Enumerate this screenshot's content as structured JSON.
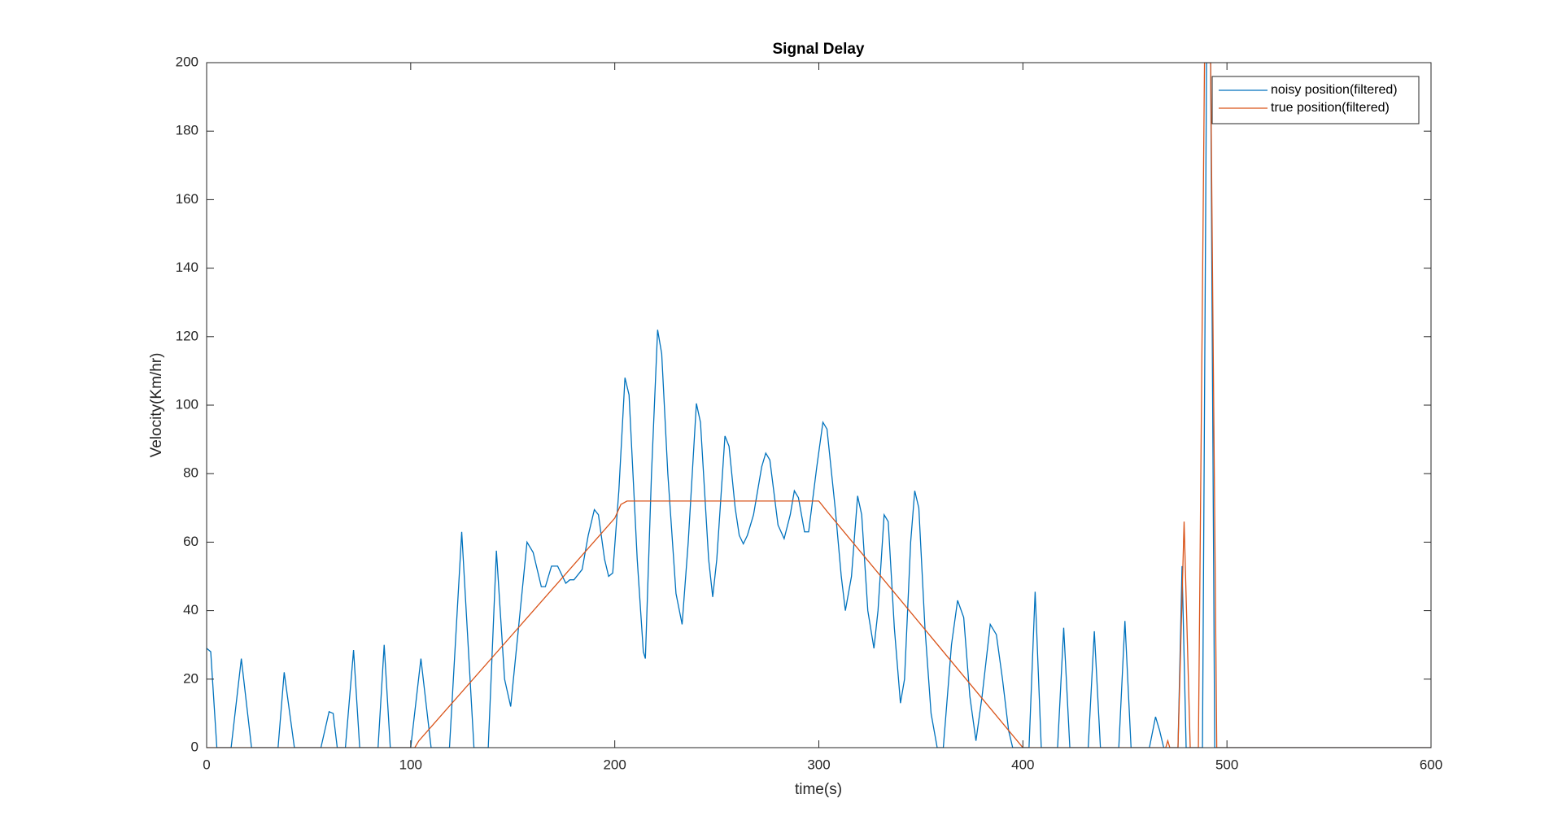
{
  "chart_data": {
    "type": "line",
    "title": "Signal Delay",
    "x_label": "time(s)",
    "y_label": "Velocity(Km/hr)",
    "xlim": [
      0,
      600
    ],
    "xticks": [
      0,
      100,
      200,
      300,
      400,
      500,
      600
    ],
    "ylim": [
      0,
      200
    ],
    "yticks": [
      0,
      20,
      40,
      60,
      80,
      100,
      120,
      140,
      160,
      180,
      200
    ],
    "grid": false,
    "legend": "upper right",
    "series": [
      {
        "name": "noisy position(filtered)",
        "color": "#0072bd",
        "x": [
          0,
          2,
          5,
          12,
          17,
          22,
          35,
          38,
          43,
          56,
          60,
          62,
          64,
          68,
          72,
          75,
          84,
          87,
          90,
          100,
          105,
          110,
          119,
          125,
          131,
          138,
          142,
          146,
          149,
          152,
          157,
          160,
          164,
          166,
          169,
          172,
          176,
          178,
          180,
          184,
          187,
          190,
          192,
          195,
          197,
          199,
          202,
          205,
          207,
          211,
          214,
          215,
          218,
          221,
          223,
          226,
          230,
          233,
          236,
          240,
          242,
          246,
          248,
          250,
          254,
          256,
          259,
          261,
          263,
          265,
          268,
          272,
          274,
          276,
          280,
          283,
          286,
          288,
          290,
          293,
          295,
          299,
          302,
          304,
          308,
          311,
          313,
          316,
          319,
          321,
          324,
          327,
          329,
          332,
          334,
          337,
          340,
          342,
          345,
          347,
          349,
          352,
          355,
          358,
          361,
          365,
          368,
          371,
          374,
          377,
          380,
          384,
          387,
          390,
          393,
          395,
          403,
          406,
          409,
          417,
          420,
          423,
          432,
          435,
          438,
          447,
          450,
          453,
          462,
          465,
          467,
          469,
          476,
          478,
          480,
          488,
          490,
          492,
          494,
          600
        ],
        "values": [
          29,
          28,
          0,
          0,
          26,
          0,
          0,
          22,
          0,
          0,
          10.5,
          10,
          0,
          0,
          28.5,
          0,
          0,
          30,
          0,
          0,
          26,
          0,
          0,
          63,
          0,
          0,
          57.5,
          20,
          12,
          30,
          60,
          57,
          47,
          47,
          53,
          53,
          48,
          49,
          49,
          52,
          62,
          69.5,
          68,
          55,
          50,
          51,
          75,
          108,
          103,
          55,
          28,
          26,
          80,
          122,
          115,
          80,
          45,
          36,
          60,
          100.5,
          95,
          55,
          44,
          55,
          91,
          88,
          70,
          62,
          59.5,
          62,
          68,
          82,
          86,
          84,
          65,
          61,
          68,
          75,
          73,
          63,
          63,
          82,
          95,
          93,
          70,
          50,
          40,
          50,
          73.5,
          68,
          40,
          29,
          40,
          68,
          66,
          35,
          13,
          20,
          60,
          75,
          70,
          35,
          10,
          0,
          0,
          30,
          43,
          38,
          15,
          2,
          15,
          36,
          33,
          20,
          5,
          0,
          0,
          45.5,
          0,
          0,
          35,
          0,
          0,
          34,
          0,
          0,
          37,
          0,
          0,
          9,
          5,
          0,
          0,
          53,
          0,
          0,
          200,
          200,
          0,
          0
        ]
      },
      {
        "name": "true position(filtered)",
        "color": "#d95319",
        "x": [
          0,
          100,
          102,
          104,
          200,
          203,
          206,
          295,
          300,
          304,
          400,
          470,
          471,
          472,
          476,
          479,
          482,
          486,
          489,
          492,
          495,
          600
        ],
        "values": [
          0,
          0,
          0,
          2,
          67,
          71,
          72,
          72,
          72,
          69,
          0,
          0,
          2,
          0,
          0,
          66,
          0,
          0,
          200,
          200,
          0,
          0
        ]
      }
    ]
  }
}
